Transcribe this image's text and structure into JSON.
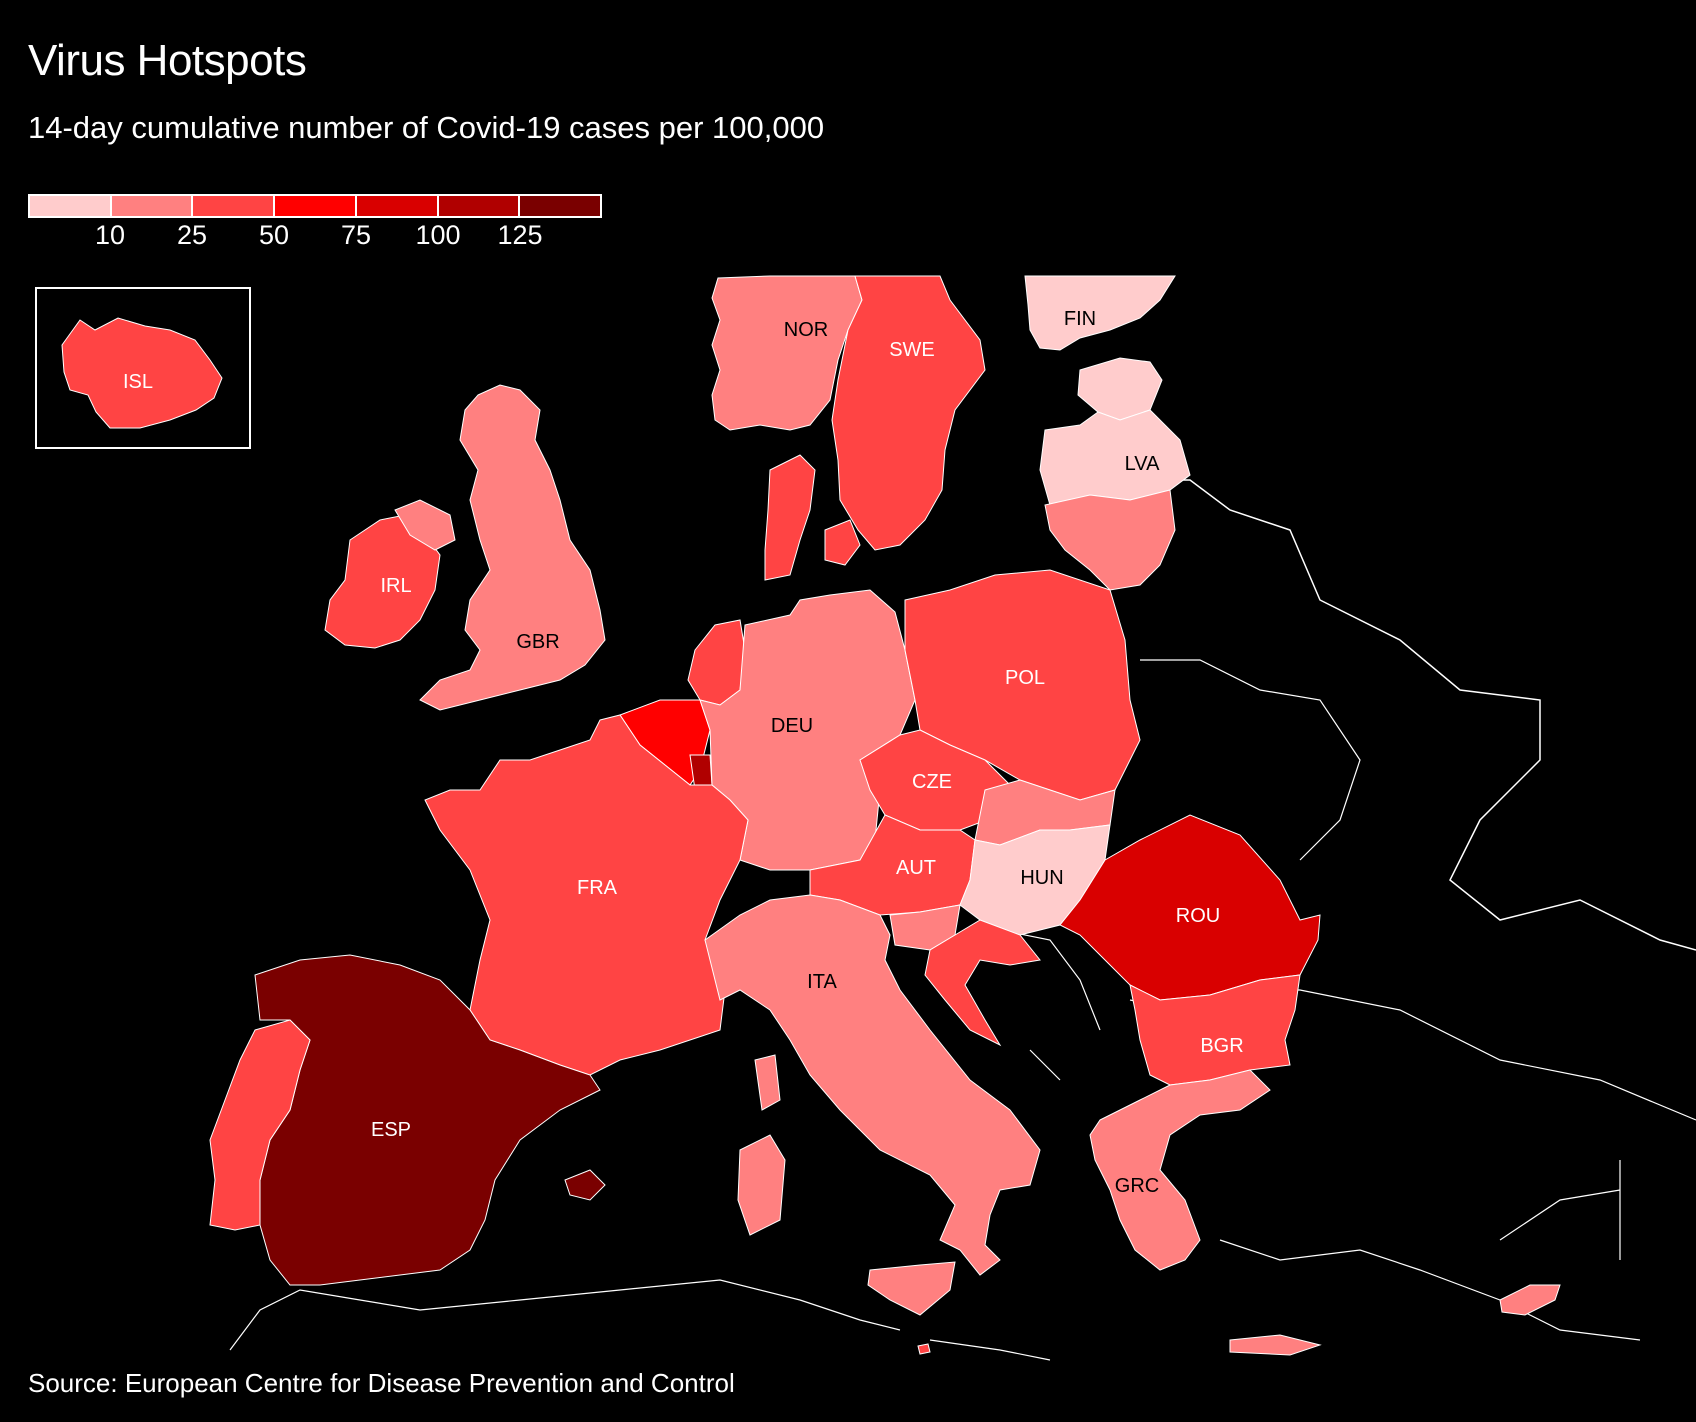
{
  "title": "Virus Hotspots",
  "subtitle": "14-day cumulative number of Covid-19 cases per 100,000",
  "source": "Source: European Centre for Disease Prevention and Control",
  "legend": {
    "colors": [
      "#ffcccc",
      "#ff8080",
      "#ff4444",
      "#ff0000",
      "#d90000",
      "#b00000",
      "#7a0000"
    ],
    "ticks": [
      "10",
      "25",
      "50",
      "75",
      "100",
      "125"
    ]
  },
  "countries": [
    {
      "code": "ISL",
      "bin": 2
    },
    {
      "code": "NOR",
      "bin": 1
    },
    {
      "code": "SWE",
      "bin": 2
    },
    {
      "code": "FIN",
      "bin": 0
    },
    {
      "code": "EST",
      "bin": 0
    },
    {
      "code": "LVA",
      "bin": 0
    },
    {
      "code": "LTU",
      "bin": 1
    },
    {
      "code": "IRL",
      "bin": 2
    },
    {
      "code": "GBR",
      "bin": 1
    },
    {
      "code": "NLD",
      "bin": 2
    },
    {
      "code": "BEL",
      "bin": 3
    },
    {
      "code": "LUX",
      "bin": 5
    },
    {
      "code": "DEU",
      "bin": 1
    },
    {
      "code": "DNK",
      "bin": 2
    },
    {
      "code": "POL",
      "bin": 2
    },
    {
      "code": "CZE",
      "bin": 2
    },
    {
      "code": "SVK",
      "bin": 1
    },
    {
      "code": "AUT",
      "bin": 2
    },
    {
      "code": "HUN",
      "bin": 0
    },
    {
      "code": "SVN",
      "bin": 1
    },
    {
      "code": "HRV",
      "bin": 2
    },
    {
      "code": "ROU",
      "bin": 4
    },
    {
      "code": "BGR",
      "bin": 2
    },
    {
      "code": "GRC",
      "bin": 1
    },
    {
      "code": "CYP",
      "bin": 1
    },
    {
      "code": "MLT",
      "bin": 2
    },
    {
      "code": "FRA",
      "bin": 2
    },
    {
      "code": "ITA",
      "bin": 1
    },
    {
      "code": "ESP",
      "bin": 6
    },
    {
      "code": "PRT",
      "bin": 2
    }
  ],
  "labels": [
    {
      "code": "ISL",
      "text": "ISL"
    },
    {
      "code": "NOR",
      "text": "NOR"
    },
    {
      "code": "SWE",
      "text": "SWE"
    },
    {
      "code": "FIN",
      "text": "FIN"
    },
    {
      "code": "LVA",
      "text": "LVA"
    },
    {
      "code": "IRL",
      "text": "IRL"
    },
    {
      "code": "GBR",
      "text": "GBR"
    },
    {
      "code": "DEU",
      "text": "DEU"
    },
    {
      "code": "POL",
      "text": "POL"
    },
    {
      "code": "CZE",
      "text": "CZE"
    },
    {
      "code": "AUT",
      "text": "AUT"
    },
    {
      "code": "HUN",
      "text": "HUN"
    },
    {
      "code": "ROU",
      "text": "ROU"
    },
    {
      "code": "FRA",
      "text": "FRA"
    },
    {
      "code": "ITA",
      "text": "ITA"
    },
    {
      "code": "BGR",
      "text": "BGR"
    },
    {
      "code": "ESP",
      "text": "ESP"
    },
    {
      "code": "GRC",
      "text": "GRC"
    }
  ]
}
